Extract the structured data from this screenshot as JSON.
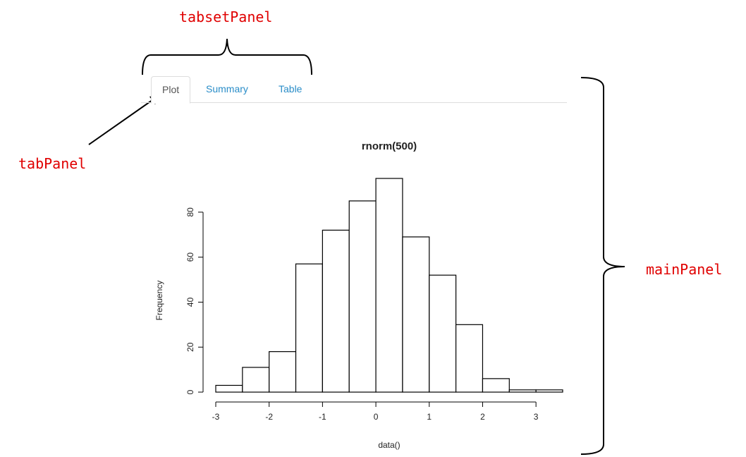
{
  "annotations": {
    "tabset_panel": "tabsetPanel",
    "tab_panel": "tabPanel",
    "main_panel": "mainPanel",
    "color": "#e00000"
  },
  "tabs": [
    {
      "label": "Plot",
      "active": true
    },
    {
      "label": "Summary",
      "active": false
    },
    {
      "label": "Table",
      "active": false
    }
  ],
  "colors": {
    "tab_link": "#2a8dc8",
    "tab_active_text": "#555555",
    "tab_border": "#dddddd"
  },
  "chart_data": {
    "type": "bar",
    "title": "rnorm(500)",
    "xlabel": "data()",
    "ylabel": "Frequency",
    "bin_edges": [
      -3.0,
      -2.5,
      -2.0,
      -1.5,
      -1.0,
      -0.5,
      0.0,
      0.5,
      1.0,
      1.5,
      2.0,
      2.5,
      3.0,
      3.5
    ],
    "values": [
      3,
      11,
      18,
      57,
      72,
      85,
      95,
      69,
      52,
      30,
      6,
      1,
      1
    ],
    "xticks": [
      "-3",
      "-2",
      "-1",
      "0",
      "1",
      "2",
      "3"
    ],
    "yticks": [
      "0",
      "20",
      "40",
      "60",
      "80"
    ],
    "xlim": [
      -3.0,
      3.5
    ],
    "ylim": [
      0,
      95
    ],
    "grid": false,
    "legend": "none"
  }
}
